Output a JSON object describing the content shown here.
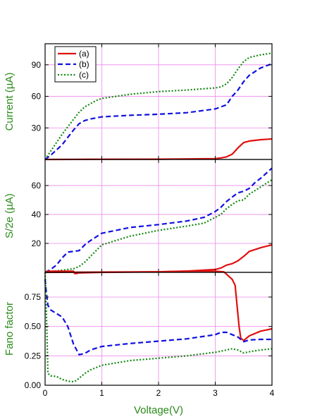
{
  "colors": {
    "a": "#e01010",
    "b": "#1010e0",
    "c": "#108a10",
    "grid": "#ee88ee",
    "axis_title": "#2a8a1a"
  },
  "chart_data": [
    {
      "type": "line",
      "ylabel": "Current (µA)",
      "xlabel": "",
      "xlim": [
        0,
        4
      ],
      "ylim": [
        0,
        110
      ],
      "yticks": [
        30,
        60,
        90
      ],
      "grid": true,
      "legend": {
        "placement": "top-left",
        "entries": [
          "(a)",
          "(b)",
          "(c)"
        ]
      },
      "series": [
        {
          "name": "(a)",
          "style": "solid",
          "x": [
            0,
            0.5,
            1,
            2,
            3,
            3.1,
            3.2,
            3.3,
            3.4,
            3.5,
            3.6,
            3.8,
            4
          ],
          "y": [
            0,
            0.1,
            0.2,
            0.3,
            0.8,
            1.5,
            2.5,
            5,
            11,
            16,
            17.5,
            18.8,
            19.5
          ]
        },
        {
          "name": "(b)",
          "style": "dashed",
          "x": [
            0,
            0.1,
            0.2,
            0.3,
            0.4,
            0.5,
            0.6,
            0.7,
            0.8,
            1,
            1.5,
            2,
            2.5,
            3,
            3.2,
            3.3,
            3.4,
            3.5,
            3.6,
            3.8,
            4
          ],
          "y": [
            0,
            4,
            9,
            14,
            21,
            28,
            34,
            37,
            38.5,
            40.5,
            42,
            43,
            44.5,
            48,
            52,
            60,
            66,
            74,
            80,
            87,
            91
          ]
        },
        {
          "name": "(c)",
          "style": "dotted",
          "x": [
            0,
            0.1,
            0.2,
            0.3,
            0.4,
            0.5,
            0.6,
            0.7,
            0.8,
            0.9,
            1,
            1.5,
            2,
            2.5,
            3,
            3.1,
            3.2,
            3.3,
            3.4,
            3.5,
            3.6,
            3.8,
            4
          ],
          "y": [
            0,
            8,
            16,
            24,
            31,
            38,
            45,
            50,
            53,
            56,
            58,
            62,
            64.5,
            66,
            68,
            69,
            72,
            78,
            86,
            93,
            97,
            99.5,
            101
          ]
        }
      ]
    },
    {
      "type": "line",
      "ylabel": "S/2e (µA)",
      "xlabel": "",
      "xlim": [
        0,
        4
      ],
      "ylim": [
        0,
        78
      ],
      "yticks": [
        20,
        40,
        60
      ],
      "grid": true,
      "series": [
        {
          "name": "(a)",
          "style": "solid",
          "x": [
            0,
            0.5,
            1,
            2,
            2.5,
            3,
            3.1,
            3.2,
            3.3,
            3.4,
            3.5,
            3.6,
            3.8,
            4
          ],
          "y": [
            0,
            0.1,
            0.2,
            0.4,
            0.9,
            2,
            3,
            5,
            6,
            8,
            11,
            14.5,
            17,
            19
          ]
        },
        {
          "name": "(b)",
          "style": "dashed",
          "x": [
            0,
            0.1,
            0.2,
            0.3,
            0.4,
            0.5,
            0.6,
            0.7,
            0.8,
            1,
            1.5,
            2,
            2.5,
            2.8,
            3,
            3.1,
            3.2,
            3.3,
            3.4,
            3.5,
            3.6,
            3.7,
            3.8,
            4
          ],
          "y": [
            0,
            2,
            5,
            10,
            14,
            14.5,
            15,
            19,
            22,
            27,
            31,
            33,
            35.5,
            38,
            42,
            45,
            49,
            52,
            55,
            56,
            58,
            62,
            65,
            72
          ]
        },
        {
          "name": "(c)",
          "style": "dotted",
          "x": [
            0,
            0.1,
            0.2,
            0.3,
            0.4,
            0.5,
            0.6,
            0.7,
            0.8,
            0.9,
            1,
            1.5,
            2,
            2.5,
            2.8,
            3,
            3.1,
            3.2,
            3.3,
            3.4,
            3.5,
            3.6,
            3.8,
            4
          ],
          "y": [
            0,
            0.5,
            1,
            1.5,
            2,
            2.5,
            4,
            7,
            11,
            15,
            19,
            25,
            29,
            32,
            34,
            38,
            40,
            44,
            47,
            49.5,
            50,
            54,
            59,
            64
          ]
        }
      ]
    },
    {
      "type": "line",
      "ylabel": "Fano factor",
      "xlabel": "Voltage(V)",
      "xlim": [
        0,
        4
      ],
      "ylim": [
        0,
        0.96
      ],
      "yticks": [
        0.0,
        0.25,
        0.5,
        0.75
      ],
      "ytick_labels": [
        "0.00",
        "0.25",
        "0.50",
        "0.75"
      ],
      "xticks": [
        0,
        1,
        2,
        3,
        4
      ],
      "grid": true,
      "series": [
        {
          "name": "(a)",
          "style": "solid",
          "x": [
            0.02,
            0.5,
            0.52,
            0.55,
            0.6,
            1,
            2,
            2.5,
            3,
            3.15,
            3.3,
            3.35,
            3.4,
            3.42,
            3.45,
            3.5,
            3.6,
            3.8,
            4
          ],
          "y": [
            0.97,
            0.97,
            0.95,
            0.95,
            0.955,
            0.96,
            0.965,
            0.97,
            0.97,
            0.965,
            0.9,
            0.85,
            0.6,
            0.5,
            0.4,
            0.38,
            0.42,
            0.46,
            0.48
          ]
        },
        {
          "name": "(b)",
          "style": "dashed",
          "x": [
            0,
            0.02,
            0.05,
            0.1,
            0.2,
            0.3,
            0.4,
            0.5,
            0.6,
            0.7,
            0.8,
            1,
            1.5,
            2,
            2.5,
            3,
            3.1,
            3.2,
            3.3,
            3.4,
            3.5,
            3.6,
            3.8,
            4
          ],
          "y": [
            0.9,
            0.8,
            0.68,
            0.64,
            0.61,
            0.58,
            0.5,
            0.35,
            0.26,
            0.27,
            0.3,
            0.33,
            0.355,
            0.375,
            0.395,
            0.43,
            0.45,
            0.45,
            0.43,
            0.41,
            0.37,
            0.385,
            0.39,
            0.39
          ]
        },
        {
          "name": "(c)",
          "style": "dotted",
          "x": [
            0,
            0.03,
            0.05,
            0.1,
            0.2,
            0.3,
            0.4,
            0.5,
            0.55,
            0.6,
            0.7,
            0.8,
            1,
            1.5,
            2,
            2.5,
            3,
            3.1,
            3.2,
            3.3,
            3.4,
            3.5,
            3.6,
            3.8,
            4
          ],
          "y": [
            0.96,
            0.5,
            0.1,
            0.08,
            0.075,
            0.05,
            0.035,
            0.03,
            0.04,
            0.06,
            0.1,
            0.13,
            0.17,
            0.21,
            0.23,
            0.25,
            0.28,
            0.29,
            0.3,
            0.31,
            0.3,
            0.275,
            0.285,
            0.3,
            0.31
          ]
        }
      ]
    }
  ]
}
